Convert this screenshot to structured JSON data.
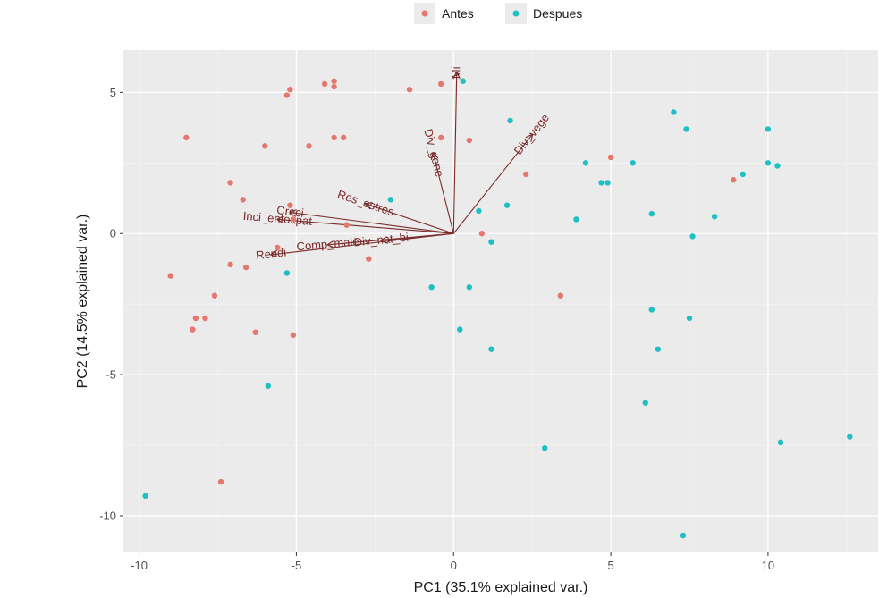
{
  "chart_data": {
    "type": "scatter",
    "xlabel": "PC1 (35.1% explained var.)",
    "ylabel": "PC2 (14.5% explained var.)",
    "xlim": [
      -10.5,
      13.5
    ],
    "ylim": [
      -11.3,
      6.5
    ],
    "x_ticks": [
      -10,
      -5,
      0,
      5,
      10
    ],
    "y_ticks": [
      -10,
      -5,
      0,
      5
    ],
    "grid": true,
    "legend_position": "top",
    "series": [
      {
        "name": "Antes",
        "color": "#E5786E",
        "points": [
          [
            -8.5,
            3.4
          ],
          [
            -5.2,
            5.1
          ],
          [
            -5.3,
            4.9
          ],
          [
            -4.1,
            5.3
          ],
          [
            -3.8,
            5.4
          ],
          [
            -3.8,
            5.2
          ],
          [
            -0.4,
            5.3
          ],
          [
            -1.4,
            5.1
          ],
          [
            -6.0,
            3.1
          ],
          [
            -4.6,
            3.1
          ],
          [
            -3.8,
            3.4
          ],
          [
            -3.5,
            3.4
          ],
          [
            -0.4,
            3.4
          ],
          [
            0.5,
            3.3
          ],
          [
            -7.1,
            1.8
          ],
          [
            -6.7,
            1.2
          ],
          [
            -5.2,
            1.0
          ],
          [
            -5.1,
            0.5
          ],
          [
            -3.4,
            0.3
          ],
          [
            -2.7,
            -0.9
          ],
          [
            -5.6,
            -0.5
          ],
          [
            -7.1,
            -1.1
          ],
          [
            -6.6,
            -1.2
          ],
          [
            -9.0,
            -1.5
          ],
          [
            -7.6,
            -2.2
          ],
          [
            -8.2,
            -3.0
          ],
          [
            -7.9,
            -3.0
          ],
          [
            -8.3,
            -3.4
          ],
          [
            -6.3,
            -3.5
          ],
          [
            -5.1,
            -3.6
          ],
          [
            -7.4,
            -8.8
          ],
          [
            0.9,
            0.0
          ],
          [
            2.3,
            2.1
          ],
          [
            3.4,
            -2.2
          ],
          [
            5.0,
            2.7
          ],
          [
            8.9,
            1.9
          ]
        ]
      },
      {
        "name": "Despues",
        "color": "#1FBFC3",
        "points": [
          [
            0.3,
            5.4
          ],
          [
            1.8,
            4.0
          ],
          [
            -2.0,
            1.2
          ],
          [
            0.8,
            0.8
          ],
          [
            1.7,
            1.0
          ],
          [
            1.2,
            -0.3
          ],
          [
            -0.7,
            -1.9
          ],
          [
            0.5,
            -1.9
          ],
          [
            -5.3,
            -1.4
          ],
          [
            0.2,
            -3.4
          ],
          [
            1.2,
            -4.1
          ],
          [
            -5.9,
            -5.4
          ],
          [
            2.9,
            -7.6
          ],
          [
            -9.8,
            -9.3
          ],
          [
            4.2,
            2.5
          ],
          [
            4.7,
            1.8
          ],
          [
            4.9,
            1.8
          ],
          [
            5.7,
            2.5
          ],
          [
            3.9,
            0.5
          ],
          [
            6.3,
            0.7
          ],
          [
            7.0,
            4.3
          ],
          [
            7.4,
            3.7
          ],
          [
            7.6,
            -0.1
          ],
          [
            8.3,
            0.6
          ],
          [
            9.2,
            2.1
          ],
          [
            10.0,
            3.7
          ],
          [
            10.0,
            2.5
          ],
          [
            10.3,
            2.4
          ],
          [
            6.3,
            -2.7
          ],
          [
            7.5,
            -3.0
          ],
          [
            6.5,
            -4.1
          ],
          [
            6.1,
            -6.0
          ],
          [
            7.3,
            -10.7
          ],
          [
            10.4,
            -7.4
          ],
          [
            12.6,
            -7.2
          ]
        ]
      }
    ],
    "loadings": [
      {
        "label": "Mi",
        "x": 0.1,
        "y": 5.7
      },
      {
        "label": "Div_gene",
        "x": -0.65,
        "y": 2.85
      },
      {
        "label": "Div_vege",
        "x": 2.5,
        "y": 3.5
      },
      {
        "label": "Res_estres",
        "x": -2.8,
        "y": 1.05
      },
      {
        "label": "Creci",
        "x": -5.2,
        "y": 0.75
      },
      {
        "label": "Inci_enfoxpat",
        "x": -5.6,
        "y": 0.5
      },
      {
        "label": "Div_nat_bi",
        "x": -2.3,
        "y": -0.25
      },
      {
        "label": "Comp_male",
        "x": -4.0,
        "y": -0.4
      },
      {
        "label": "Rendi",
        "x": -5.8,
        "y": -0.75
      }
    ]
  }
}
